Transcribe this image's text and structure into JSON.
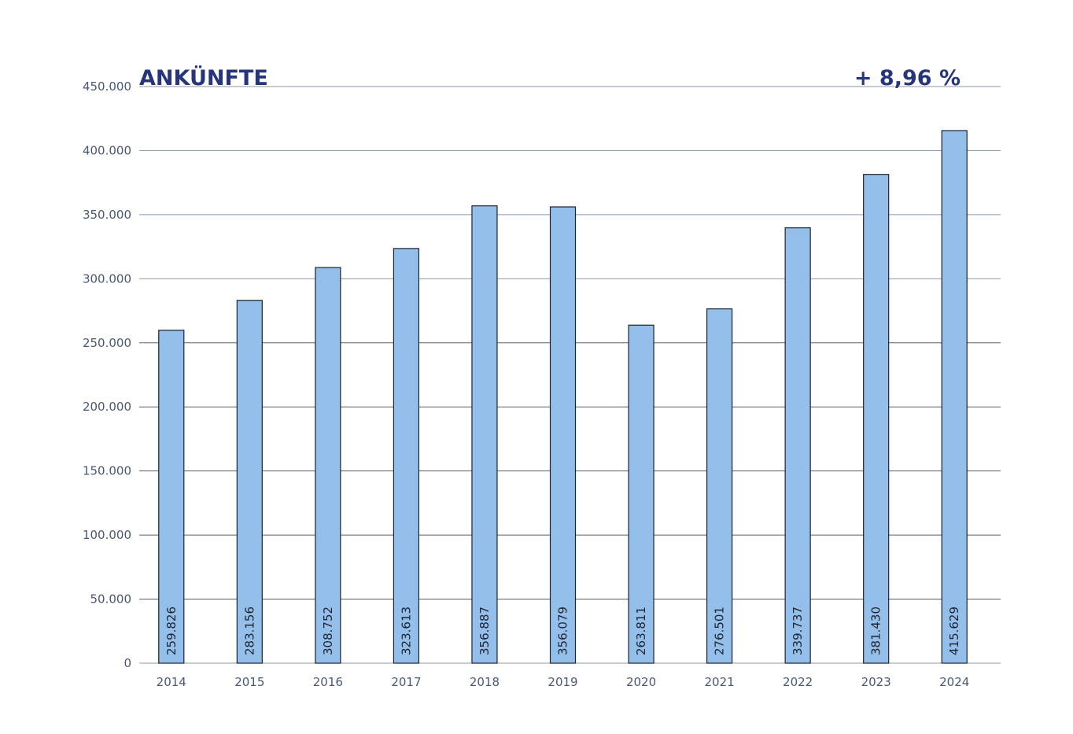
{
  "chart_data": {
    "type": "bar",
    "title": "ANKÜNFTE",
    "change_label": "+ 8,96 %",
    "xlabel": "",
    "ylabel": "",
    "categories": [
      "2014",
      "2015",
      "2016",
      "2017",
      "2018",
      "2019",
      "2020",
      "2021",
      "2022",
      "2023",
      "2024"
    ],
    "values": [
      259826,
      283156,
      308752,
      323613,
      356887,
      356079,
      263811,
      276501,
      339737,
      381430,
      415629
    ],
    "value_labels": [
      "259.826",
      "283.156",
      "308.752",
      "323.613",
      "356.887",
      "356.079",
      "263.811",
      "276.501",
      "339.737",
      "381.430",
      "415.629"
    ],
    "ylim": [
      0,
      450000
    ],
    "y_ticks": [
      0,
      50000,
      100000,
      150000,
      200000,
      250000,
      300000,
      350000,
      400000,
      450000
    ],
    "y_tick_labels": [
      "0",
      "50.000",
      "100.000",
      "150.000",
      "200.000",
      "250.000",
      "300.000",
      "350.000",
      "400.000",
      "450.000"
    ],
    "grid": true,
    "legend": "none",
    "colors": {
      "bar_fill": "#94bfea",
      "bar_stroke": "#1d2230",
      "title": "#27357a",
      "tick_text": "#4a5878",
      "grid": "#8f9aa6"
    }
  }
}
